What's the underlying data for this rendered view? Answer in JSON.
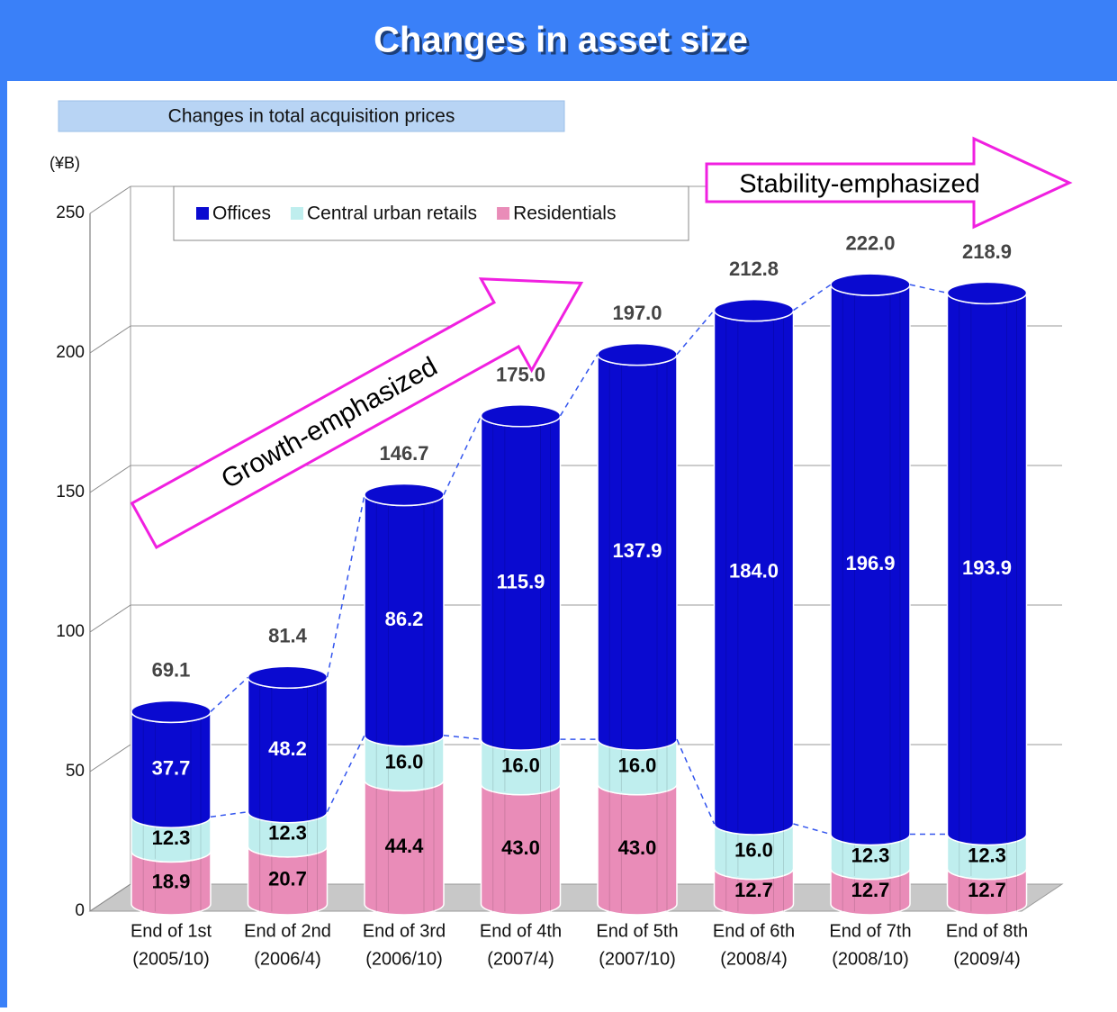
{
  "chart_data": {
    "type": "bar",
    "title": "Changes in asset size",
    "subtitle": "Changes in total acquisition prices",
    "y_axis_label": "(¥B)",
    "annotations": [
      "Growth-emphasized",
      "Stability-emphasized"
    ],
    "categories": [
      [
        "End of 1st",
        "(2005/10)"
      ],
      [
        "End of 2nd",
        "(2006/4)"
      ],
      [
        "End of 3rd",
        "(2006/10)"
      ],
      [
        "End of 4th",
        "(2007/4)"
      ],
      [
        "End of 5th",
        "(2007/10)"
      ],
      [
        "End of 6th",
        "(2008/4)"
      ],
      [
        "End of 7th",
        "(2008/10)"
      ],
      [
        "End of 8th",
        "(2009/4)"
      ]
    ],
    "series": [
      {
        "name": "Offices",
        "color": "#0a0ad0",
        "label_color": "#ffffff",
        "values": [
          37.7,
          48.2,
          86.2,
          115.9,
          137.9,
          184.0,
          196.9,
          193.9
        ],
        "value_labels": [
          "37.7",
          "48.2",
          "86.2",
          "115.9",
          "137.9",
          "184.0",
          "196.9",
          "193.9"
        ]
      },
      {
        "name": "Central urban retails",
        "color": "#bfeeee",
        "label_color": "#000000",
        "values": [
          12.3,
          12.3,
          16.0,
          16.0,
          16.0,
          16.0,
          12.3,
          12.3
        ],
        "value_labels": [
          "12.3",
          "12.3",
          "16.0",
          "16.0",
          "16.0",
          "16.0",
          "12.3",
          "12.3"
        ]
      },
      {
        "name": "Residentials",
        "color": "#e98cb8",
        "label_color": "#000000",
        "values": [
          18.9,
          20.7,
          44.4,
          43.0,
          43.0,
          12.7,
          12.7,
          12.7
        ],
        "value_labels": [
          "18.9",
          "20.7",
          "44.4",
          "43.0",
          "43.0",
          "12.7",
          "12.7",
          "12.7"
        ]
      }
    ],
    "totals": [
      69.1,
      81.4,
      146.7,
      175.0,
      197.0,
      212.8,
      222.0,
      218.9
    ],
    "total_labels": [
      "69.1",
      "81.4",
      "146.7",
      "175.0",
      "197.0",
      "212.8",
      "222.0",
      "218.9"
    ],
    "stacked": true,
    "ylim": [
      0,
      250
    ],
    "yticks": [
      0,
      50,
      100,
      150,
      200,
      250
    ],
    "grid": true
  }
}
